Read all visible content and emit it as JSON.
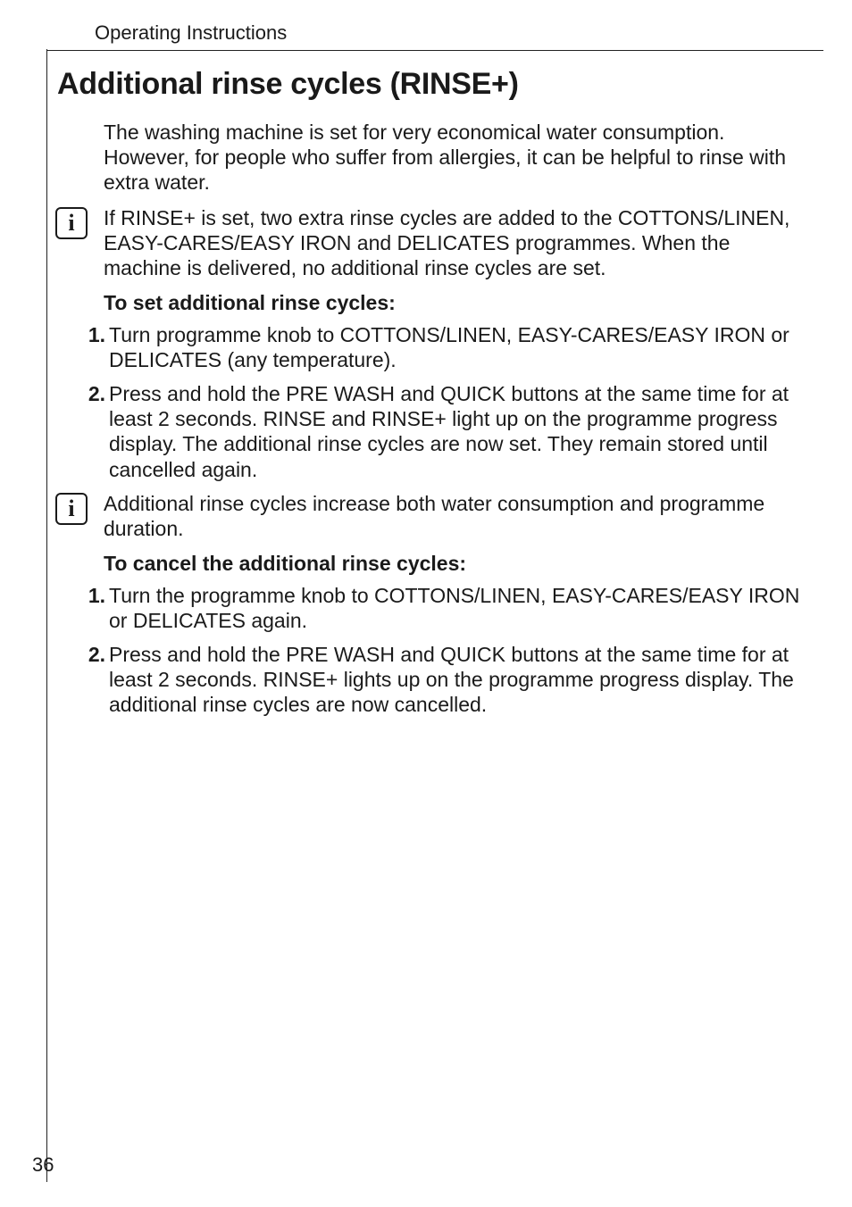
{
  "header": {
    "running_title": "Operating Instructions"
  },
  "title": "Additional rinse cycles (RINSE+)",
  "intro_para": "The washing machine is set for very economical water consumption. However, for people who suffer from allergies, it can be helpful to rinse with extra water.",
  "info_notes": [
    "If RINSE+ is set, two extra rinse cycles are added to the COTTONS/LINEN, EASY-CARES/EASY IRON and DELICATES  programmes. When the machine is delivered, no additional rinse cycles are set.",
    "Additional rinse cycles increase both water consumption and programme duration."
  ],
  "section_set": {
    "heading": "To set additional rinse cycles:",
    "items": [
      {
        "num": "1.",
        "text": "Turn programme knob to COTTONS/LINEN, EASY-CARES/EASY IRON or DELICATES (any temperature)."
      },
      {
        "num": "2.",
        "text": "Press and hold the PRE WASH and QUICK buttons at the same time for at least 2 seconds. RINSE and RINSE+ light up on the programme progress display. The additional rinse cycles are now set. They remain stored until cancelled again."
      }
    ]
  },
  "section_cancel": {
    "heading": "To cancel the additional rinse cycles:",
    "items": [
      {
        "num": "1.",
        "text": "Turn the programme knob to COTTONS/LINEN, EASY-CARES/EASY IRON or DELICATES again."
      },
      {
        "num": "2.",
        "text": "Press and hold the PRE WASH and QUICK buttons at the same time for at least 2 seconds. RINSE+ lights up on the programme progress display. The additional rinse cycles are now cancelled."
      }
    ]
  },
  "page_number": "36",
  "info_glyph": "i"
}
